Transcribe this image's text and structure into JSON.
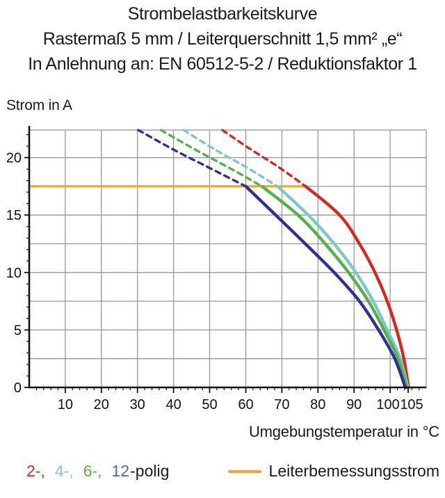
{
  "title": {
    "line1": "Strombelastbarkeitskurve",
    "line2": "Rastermaß 5 mm / Leiterquerschnitt 1,5 mm² „e“",
    "line3": "In Anlehnung an: EN 60512-5-2 / Reduktionsfaktor 1"
  },
  "legend": {
    "poles": [
      {
        "text": "2-,",
        "color": "#d6281e"
      },
      {
        "text": "4-,",
        "color": "#7ec7c3"
      },
      {
        "text": "6-,",
        "color": "#55b14b"
      },
      {
        "text": "12",
        "color": "#3e6fa8"
      }
    ],
    "suffix": "-polig",
    "rated_label": "Leiterbemessungsstrom",
    "rated_color": "#f6a528"
  },
  "chart_data": {
    "type": "line",
    "title": "Strombelastbarkeitskurve",
    "subtitle": "Rastermaß 5 mm / Leiterquerschnitt 1,5 mm² „e“",
    "note": "In Anlehnung an: EN 60512-5-2 / Reduktionsfaktor 1",
    "xlabel": "Umgebungstemperatur in °C",
    "ylabel": "Strom in A",
    "xlim": [
      0,
      110
    ],
    "ylim": [
      0,
      22.4
    ],
    "x_ticks": [
      10,
      20,
      30,
      40,
      50,
      60,
      70,
      80,
      90,
      100,
      105
    ],
    "y_ticks": [
      0,
      5,
      10,
      15,
      20
    ],
    "x_minor_step": 2,
    "y_minor_step": 1,
    "grid_x_step": 10,
    "grid_y_step": 2.5,
    "grid": true,
    "grid_color": "#969696",
    "axis_color": "#111111",
    "legend_position": "bottom",
    "rated_current": {
      "value": 17.5,
      "label": "Leiterbemessungsstrom",
      "color": "#f6a528"
    },
    "series": [
      {
        "name": "2-polig",
        "color": "#d6281e",
        "dashed_note": "dashed above rated current 17.5 A",
        "points_dashed": [
          [
            53.5,
            22.4
          ],
          [
            61,
            20.8
          ],
          [
            69,
            19.2
          ],
          [
            76.6,
            17.5
          ]
        ],
        "points_solid": [
          [
            76.6,
            17.5
          ],
          [
            86,
            15
          ],
          [
            91.5,
            12.5
          ],
          [
            95.8,
            10
          ],
          [
            99.2,
            7.5
          ],
          [
            101.8,
            5
          ],
          [
            103.8,
            2.5
          ],
          [
            105.1,
            0
          ]
        ]
      },
      {
        "name": "4-polig",
        "color": "#7ec7c3",
        "dashed_note": "dashed above rated current 17.5 A",
        "points_dashed": [
          [
            42.8,
            22.4
          ],
          [
            51.5,
            20.7
          ],
          [
            60.5,
            19.1
          ],
          [
            68.8,
            17.5
          ]
        ],
        "points_solid": [
          [
            68.8,
            17.5
          ],
          [
            77.3,
            15
          ],
          [
            84.5,
            12.5
          ],
          [
            90.5,
            10
          ],
          [
            95.3,
            7.5
          ],
          [
            99.2,
            5
          ],
          [
            102.8,
            2.5
          ],
          [
            104.9,
            0
          ]
        ]
      },
      {
        "name": "6-polig",
        "color": "#55b14b",
        "dashed_note": "dashed above rated current 17.5 A",
        "points_dashed": [
          [
            36.5,
            22.4
          ],
          [
            46,
            20.7
          ],
          [
            55.5,
            19.1
          ],
          [
            64.5,
            17.5
          ]
        ],
        "points_solid": [
          [
            64.5,
            17.5
          ],
          [
            74.5,
            15
          ],
          [
            82,
            12.5
          ],
          [
            88.5,
            10
          ],
          [
            94,
            7.5
          ],
          [
            98.3,
            5
          ],
          [
            102.2,
            2.5
          ],
          [
            104.6,
            0
          ]
        ]
      },
      {
        "name": "12-polig",
        "color": "#2e3192",
        "dashed_note": "dashed above rated current 17.5 A",
        "points_dashed": [
          [
            30.2,
            22.4
          ],
          [
            40,
            20.7
          ],
          [
            50,
            19.1
          ],
          [
            60,
            17.5
          ]
        ],
        "points_solid": [
          [
            60,
            17.5
          ],
          [
            68.3,
            15
          ],
          [
            76.5,
            12.5
          ],
          [
            84.5,
            10
          ],
          [
            91.5,
            7.5
          ],
          [
            96.8,
            5
          ],
          [
            101.3,
            2.5
          ],
          [
            104.2,
            0
          ]
        ]
      }
    ]
  }
}
